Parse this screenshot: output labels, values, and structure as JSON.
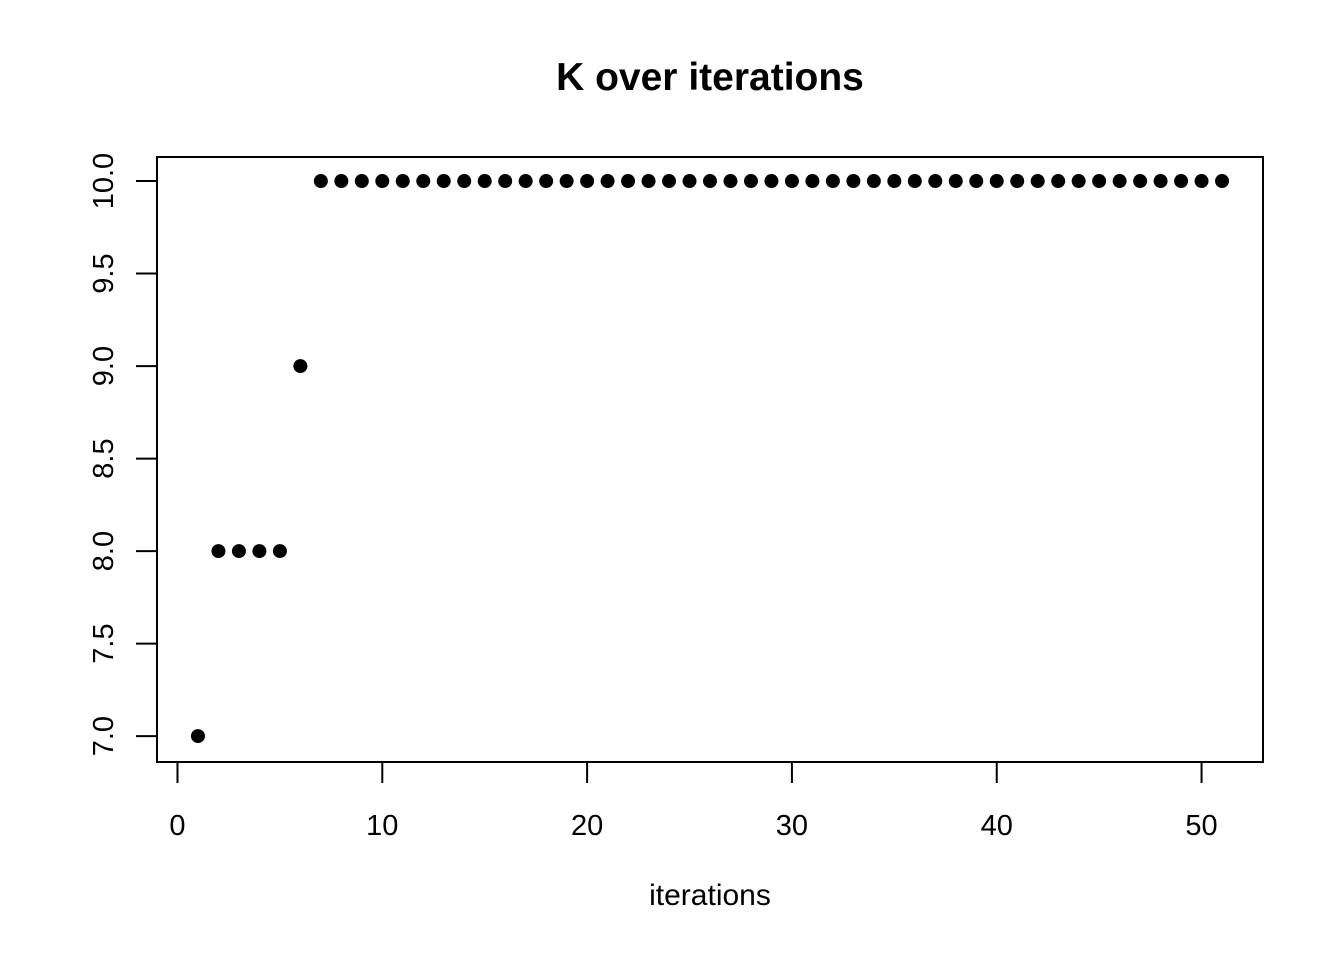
{
  "figure": {
    "background": "#ffffff",
    "foreground": "#000000"
  },
  "chart_data": {
    "type": "scatter",
    "title": "K over iterations",
    "xlabel": "iterations",
    "ylabel": "",
    "x": [
      1,
      2,
      3,
      4,
      5,
      6,
      7,
      8,
      9,
      10,
      11,
      12,
      13,
      14,
      15,
      16,
      17,
      18,
      19,
      20,
      21,
      22,
      23,
      24,
      25,
      26,
      27,
      28,
      29,
      30,
      31,
      32,
      33,
      34,
      35,
      36,
      37,
      38,
      39,
      40,
      41,
      42,
      43,
      44,
      45,
      46,
      47,
      48,
      49,
      50,
      51
    ],
    "y": [
      7,
      8,
      8,
      8,
      8,
      9,
      10,
      10,
      10,
      10,
      10,
      10,
      10,
      10,
      10,
      10,
      10,
      10,
      10,
      10,
      10,
      10,
      10,
      10,
      10,
      10,
      10,
      10,
      10,
      10,
      10,
      10,
      10,
      10,
      10,
      10,
      10,
      10,
      10,
      10,
      10,
      10,
      10,
      10,
      10,
      10,
      10,
      10,
      10,
      10,
      10
    ],
    "xlim": [
      -1.0,
      53.0
    ],
    "ylim": [
      6.86,
      10.13
    ],
    "x_ticks": [
      0,
      10,
      20,
      30,
      40,
      50
    ],
    "x_tick_labels": [
      "0",
      "10",
      "20",
      "30",
      "40",
      "50"
    ],
    "y_ticks": [
      7.0,
      7.5,
      8.0,
      8.5,
      9.0,
      9.5,
      10.0
    ],
    "y_tick_labels": [
      "7.0",
      "7.5",
      "8.0",
      "8.5",
      "9.0",
      "9.5",
      "10.0"
    ],
    "point_color": "#000000",
    "point_radius": 7,
    "axis_color": "#000000",
    "grid": false,
    "legend": "none"
  }
}
